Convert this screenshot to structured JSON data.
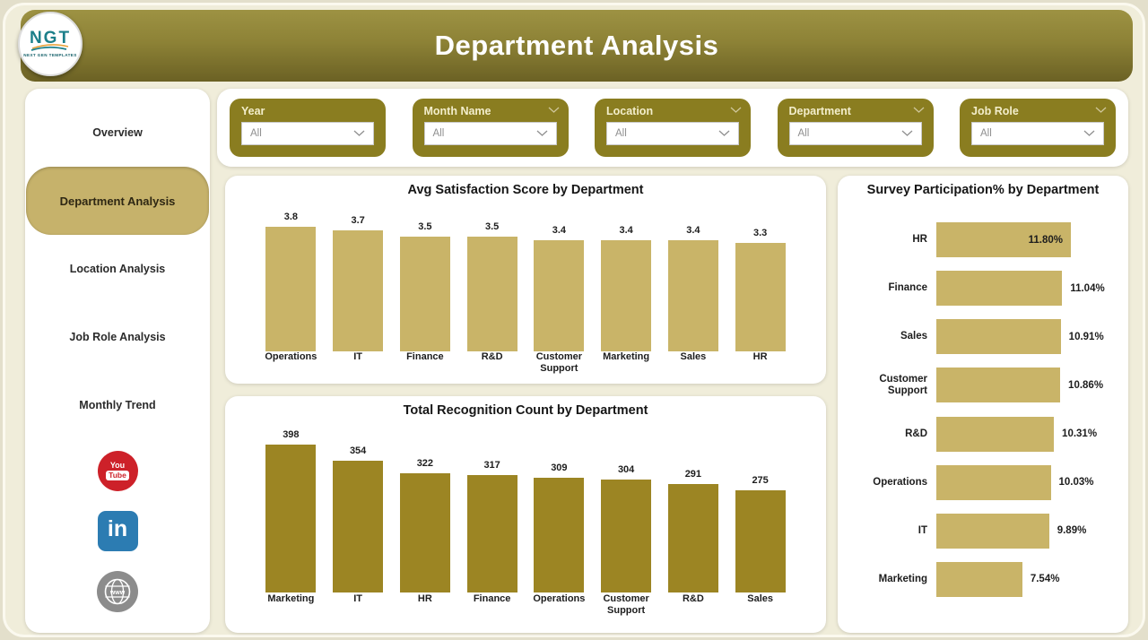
{
  "header": {
    "title": "Department Analysis",
    "logo": {
      "text": "NGT",
      "subtext": "NEXT GEN TEMPLATES"
    }
  },
  "sidebar": {
    "items": [
      {
        "label": "Overview",
        "active": false
      },
      {
        "label": "Department Analysis",
        "active": true
      },
      {
        "label": "Location Analysis",
        "active": false
      },
      {
        "label": "Job Role Analysis",
        "active": false
      },
      {
        "label": "Monthly Trend",
        "active": false
      }
    ],
    "social": {
      "youtube": {
        "line1": "You",
        "line2": "Tube"
      },
      "linkedin": {
        "label": "in"
      },
      "website": {
        "label": "www"
      }
    }
  },
  "filters": [
    {
      "label": "Year",
      "value": "All"
    },
    {
      "label": "Month Name",
      "value": "All"
    },
    {
      "label": "Location",
      "value": "All"
    },
    {
      "label": "Department",
      "value": "All"
    },
    {
      "label": "Job Role",
      "value": "All"
    }
  ],
  "colors": {
    "header_olive_top": "#9d9243",
    "header_olive_bottom": "#6b6124",
    "filter_card_olive": "#8a7d20",
    "tan_bar": "#c9b468",
    "dark_gold_bar": "#9c8523",
    "active_pill": "#c6b26b",
    "page_background": "#f0edda",
    "youtube_red": "#cd2129",
    "linkedin_blue": "#2c7cb2"
  },
  "chart_data": [
    {
      "type": "bar",
      "orientation": "vertical",
      "title": "Avg Satisfaction Score by Department",
      "categories": [
        "Operations",
        "IT",
        "Finance",
        "R&D",
        "Customer Support",
        "Marketing",
        "Sales",
        "HR"
      ],
      "values": [
        3.8,
        3.7,
        3.5,
        3.5,
        3.4,
        3.4,
        3.4,
        3.3
      ],
      "value_labels": [
        "3.8",
        "3.7",
        "3.5",
        "3.5",
        "3.4",
        "3.4",
        "3.4",
        "3.3"
      ],
      "bar_color": "#c9b468",
      "ylim": [
        0,
        3.8
      ],
      "grid": false,
      "legend": "none"
    },
    {
      "type": "bar",
      "orientation": "vertical",
      "title": "Total Recognition Count by Department",
      "categories": [
        "Marketing",
        "IT",
        "HR",
        "Finance",
        "Operations",
        "Customer Support",
        "R&D",
        "Sales"
      ],
      "values": [
        398,
        354,
        322,
        317,
        309,
        304,
        291,
        275
      ],
      "value_labels": [
        "398",
        "354",
        "322",
        "317",
        "309",
        "304",
        "291",
        "275"
      ],
      "bar_color": "#9c8523",
      "ylim": [
        0,
        398
      ],
      "grid": false,
      "legend": "none"
    },
    {
      "type": "bar",
      "orientation": "horizontal",
      "title": "Survey Participation% by Department",
      "categories": [
        "HR",
        "Finance",
        "Sales",
        "Customer Support",
        "R&D",
        "Operations",
        "IT",
        "Marketing"
      ],
      "values": [
        11.8,
        11.04,
        10.91,
        10.86,
        10.31,
        10.03,
        9.89,
        7.54
      ],
      "value_labels": [
        "11.80%",
        "11.04%",
        "10.91%",
        "10.86%",
        "10.31%",
        "10.03%",
        "9.89%",
        "7.54%"
      ],
      "bar_color": "#c9b468",
      "xlim": [
        0,
        11.8
      ],
      "grid": false,
      "legend": "none"
    }
  ]
}
